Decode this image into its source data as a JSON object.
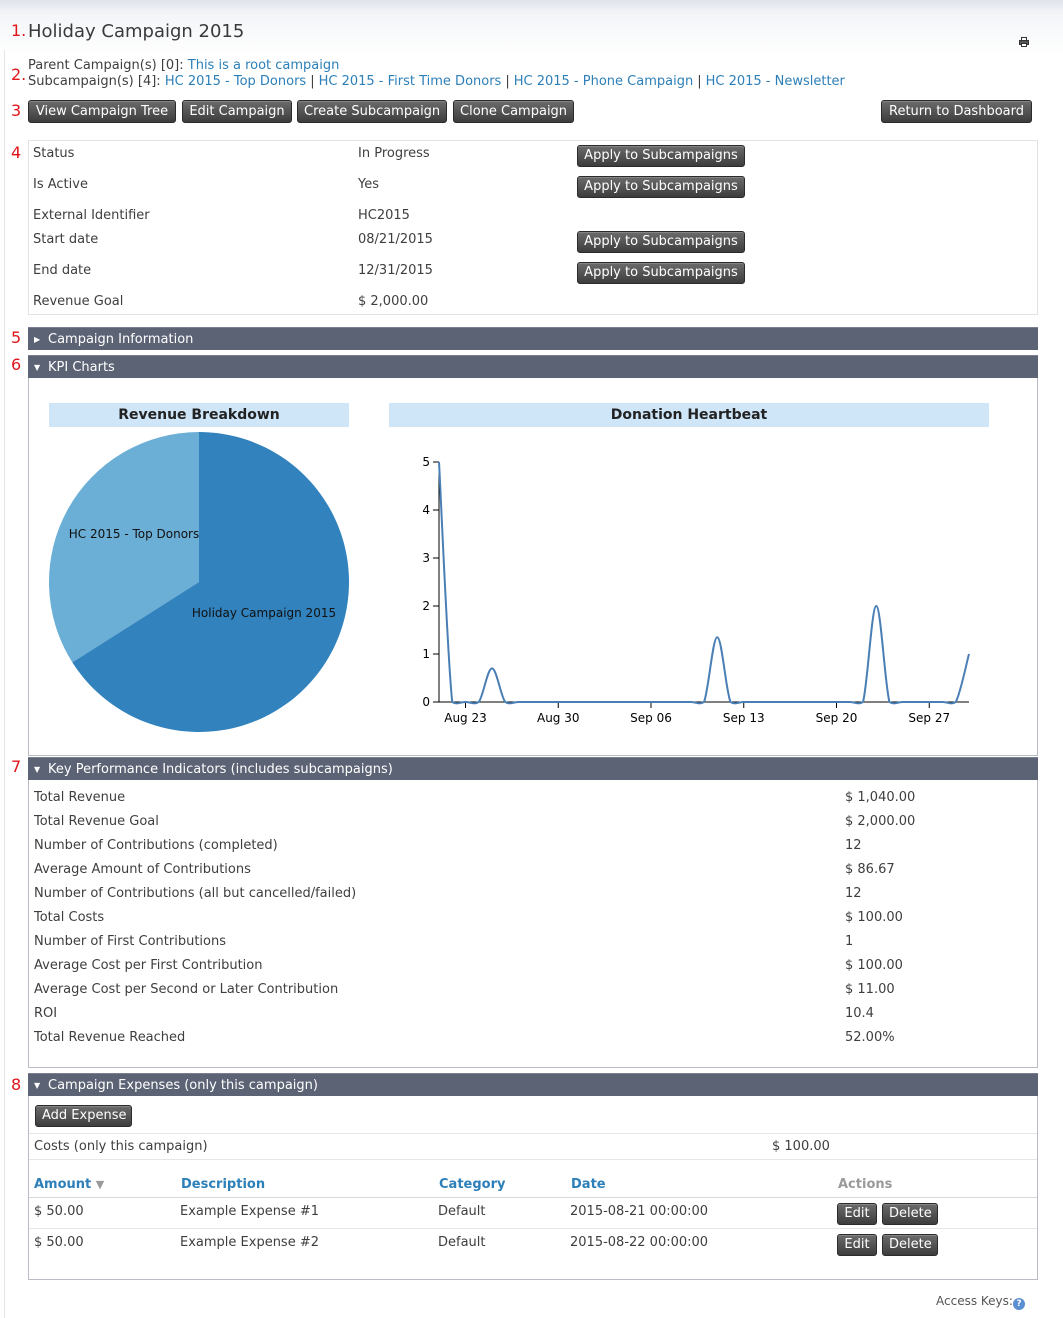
{
  "markers": [
    "1.",
    "2.",
    "3",
    "4",
    "5",
    "6",
    "7",
    "8"
  ],
  "page": {
    "title": "Holiday Campaign 2015",
    "print_icon": "printer-icon"
  },
  "parent": {
    "label": "Parent Campaign(s) [0]:",
    "link": "This is a root campaign"
  },
  "subcampaigns": {
    "label": "Subcampaign(s) [4]:",
    "items": [
      "HC 2015 - Top Donors",
      "HC 2015 - First Time Donors",
      "HC 2015 - Phone Campaign",
      "HC 2015 - Newsletter"
    ],
    "separator": "|"
  },
  "toolbar": {
    "view_tree": "View Campaign Tree",
    "edit": "Edit Campaign",
    "create_sub": "Create Subcampaign",
    "clone": "Clone Campaign",
    "return": "Return to Dashboard"
  },
  "details": [
    {
      "label": "Status",
      "value": "In Progress",
      "action": "Apply to Subcampaigns"
    },
    {
      "label": "Is Active",
      "value": "Yes",
      "action": "Apply to Subcampaigns"
    },
    {
      "label": "External Identifier",
      "value": "HC2015",
      "action": ""
    },
    {
      "label": "Start date",
      "value": "08/21/2015",
      "action": "Apply to Subcampaigns"
    },
    {
      "label": "End date",
      "value": "12/31/2015",
      "action": "Apply to Subcampaigns"
    },
    {
      "label": "Revenue Goal",
      "value": "$ 2,000.00",
      "action": ""
    }
  ],
  "panels": {
    "campaign_info": {
      "title": "Campaign Information",
      "state": "collapsed"
    },
    "kpi_charts": {
      "title": "KPI Charts",
      "state": "expanded"
    },
    "kpi": {
      "title": "Key Performance Indicators (includes subcampaigns)",
      "state": "expanded"
    },
    "expenses": {
      "title": "Campaign Expenses (only this campaign)",
      "state": "expanded"
    }
  },
  "chart_data": [
    {
      "type": "pie",
      "title": "Revenue Breakdown",
      "categories": [
        "HC 2015 - Top Donors",
        "Holiday Campaign 2015"
      ],
      "values": [
        34,
        66
      ],
      "colors": [
        "#6baed6",
        "#3182bd"
      ]
    },
    {
      "type": "line",
      "title": "Donation Heartbeat",
      "x": [
        "2015-08-21",
        "2015-08-22",
        "2015-08-23",
        "2015-08-24",
        "2015-08-25",
        "2015-08-26",
        "2015-08-27",
        "2015-08-28",
        "2015-08-29",
        "2015-08-30",
        "2015-08-31",
        "2015-09-01",
        "2015-09-02",
        "2015-09-03",
        "2015-09-04",
        "2015-09-05",
        "2015-09-06",
        "2015-09-07",
        "2015-09-08",
        "2015-09-09",
        "2015-09-10",
        "2015-09-11",
        "2015-09-12",
        "2015-09-13",
        "2015-09-14",
        "2015-09-15",
        "2015-09-16",
        "2015-09-17",
        "2015-09-18",
        "2015-09-19",
        "2015-09-20",
        "2015-09-21",
        "2015-09-22",
        "2015-09-23",
        "2015-09-24",
        "2015-09-25",
        "2015-09-26",
        "2015-09-27",
        "2015-09-28",
        "2015-09-29",
        "2015-09-30"
      ],
      "values": [
        5,
        0,
        0,
        0,
        0.7,
        0,
        0,
        0,
        0,
        0,
        0,
        0,
        0,
        0,
        0,
        0,
        0,
        0,
        0,
        0,
        0,
        1.35,
        0,
        0,
        0,
        0,
        0,
        0,
        0,
        0,
        0,
        0,
        0,
        2,
        0,
        0,
        0,
        0,
        0,
        0,
        1
      ],
      "xticks": [
        "Aug 23",
        "Aug 30",
        "Sep 06",
        "Sep 13",
        "Sep 20",
        "Sep 27"
      ],
      "xtick_dates": [
        "2015-08-23",
        "2015-08-30",
        "2015-09-06",
        "2015-09-13",
        "2015-09-20",
        "2015-09-27"
      ],
      "yticks": [
        0,
        1,
        2,
        3,
        4,
        5
      ],
      "ylim": [
        0,
        5
      ],
      "xlim": [
        "2015-08-21",
        "2015-09-30"
      ],
      "line_color": "#4a7fb5"
    }
  ],
  "kpi_rows": [
    {
      "label": "Total Revenue",
      "value": "$ 1,040.00"
    },
    {
      "label": "Total Revenue Goal",
      "value": "$ 2,000.00"
    },
    {
      "label": "Number of Contributions (completed)",
      "value": "12"
    },
    {
      "label": "Average Amount of Contributions",
      "value": "$ 86.67"
    },
    {
      "label": "Number of Contributions (all but cancelled/failed)",
      "value": "12"
    },
    {
      "label": "Total Costs",
      "value": "$ 100.00"
    },
    {
      "label": "Number of First Contributions",
      "value": "1"
    },
    {
      "label": "Average Cost per First Contribution",
      "value": "$ 100.00"
    },
    {
      "label": "Average Cost per Second or Later Contribution",
      "value": "$ 11.00"
    },
    {
      "label": "ROI",
      "value": "10.4"
    },
    {
      "label": "Total Revenue Reached",
      "value": "52.00%"
    }
  ],
  "expenses": {
    "add_button": "Add Expense",
    "costs_label": "Costs (only this campaign)",
    "costs_value": "$ 100.00",
    "columns": {
      "amount": "Amount",
      "description": "Description",
      "category": "Category",
      "date": "Date",
      "actions": "Actions"
    },
    "sort_icon": "sort-descending-icon",
    "rows": [
      {
        "amount": "$ 50.00",
        "description": "Example Expense #1",
        "category": "Default",
        "date": "2015-08-21 00:00:00",
        "edit": "Edit",
        "delete": "Delete"
      },
      {
        "amount": "$ 50.00",
        "description": "Example Expense #2",
        "category": "Default",
        "date": "2015-08-22 00:00:00",
        "edit": "Edit",
        "delete": "Delete"
      }
    ]
  },
  "footer": {
    "access_keys": "Access Keys:",
    "help_icon": "help-icon"
  }
}
